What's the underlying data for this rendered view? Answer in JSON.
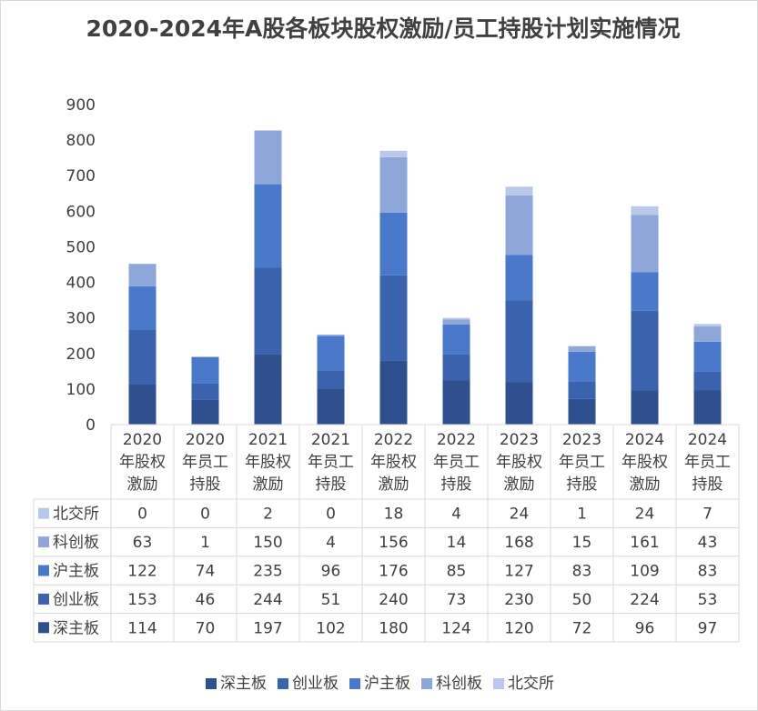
{
  "chart_data": {
    "type": "bar",
    "stacked": true,
    "title": "2020-2024年A股各板块股权激励/员工持股计划实施情况",
    "categories": [
      [
        "2020",
        "年股权",
        "激励"
      ],
      [
        "2020",
        "年员工",
        "持股"
      ],
      [
        "2021",
        "年股权",
        "激励"
      ],
      [
        "2021",
        "年员工",
        "持股"
      ],
      [
        "2022",
        "年股权",
        "激励"
      ],
      [
        "2022",
        "年员工",
        "持股"
      ],
      [
        "2023",
        "年股权",
        "激励"
      ],
      [
        "2023",
        "年员工",
        "持股"
      ],
      [
        "2024",
        "年股权",
        "激励"
      ],
      [
        "2024",
        "年员工",
        "持股"
      ]
    ],
    "series": [
      {
        "name": "深主板",
        "color": "#2f4f8f",
        "values": [
          114,
          70,
          197,
          102,
          180,
          124,
          120,
          72,
          96,
          97
        ]
      },
      {
        "name": "创业板",
        "color": "#3a62ad",
        "values": [
          153,
          46,
          244,
          51,
          240,
          73,
          230,
          50,
          224,
          53
        ]
      },
      {
        "name": "沪主板",
        "color": "#4a78cb",
        "values": [
          122,
          74,
          235,
          96,
          176,
          85,
          127,
          83,
          109,
          83
        ]
      },
      {
        "name": "科创板",
        "color": "#8fa7d8",
        "values": [
          63,
          1,
          150,
          4,
          156,
          14,
          168,
          15,
          161,
          43
        ]
      },
      {
        "name": "北交所",
        "color": "#b9c8e9",
        "values": [
          0,
          0,
          2,
          0,
          18,
          4,
          24,
          1,
          24,
          7
        ]
      }
    ],
    "yticks": [
      "0",
      "100",
      "200",
      "300",
      "400",
      "500",
      "600",
      "700",
      "800",
      "900"
    ],
    "ylim": [
      0,
      900
    ],
    "grid": false,
    "data_table": true,
    "legend_position": "bottom"
  }
}
